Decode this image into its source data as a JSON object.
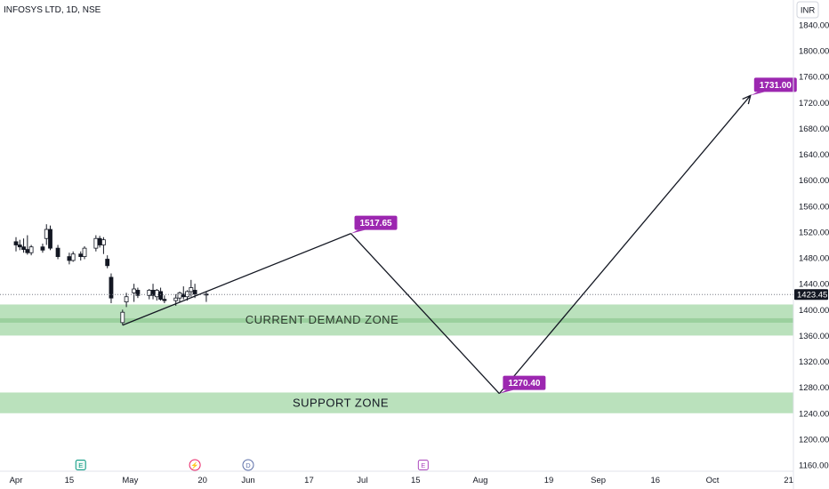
{
  "header": {
    "title": "INFOSYS LTD, 1D, NSE"
  },
  "currency_button": {
    "label": "INR"
  },
  "colors": {
    "accent": "#9c27b0",
    "zone_fill": "#b6dfb8",
    "zone_mid": "#9bd09e",
    "candle": "#131722",
    "last_price_bg": "#131722"
  },
  "chart_data": {
    "type": "candlestick",
    "title": "INFOSYS LTD, 1D, NSE",
    "ylim": [
      1150,
      1860
    ],
    "y_ticks": [
      1160,
      1200,
      1240,
      1280,
      1320,
      1360,
      1400,
      1440,
      1480,
      1520,
      1560,
      1600,
      1640,
      1680,
      1720,
      1760,
      1800,
      1840
    ],
    "y_tick_labels": [
      "1160.00",
      "1200.00",
      "1240.00",
      "1280.00",
      "1320.00",
      "1360.00",
      "1400.00",
      "1440.00",
      "1480.00",
      "1520.00",
      "1560.00",
      "1600.00",
      "1640.00",
      "1680.00",
      "1720.00",
      "1760.00",
      "1800.00",
      "1840.00"
    ],
    "x_tick_labels": [
      "Apr",
      "15",
      "May",
      "20",
      "Jun",
      "17",
      "Jul",
      "15",
      "Aug",
      "19",
      "Sep",
      "16",
      "Oct",
      "21"
    ],
    "last_price": "1423.45",
    "candles": [
      {
        "date": "2024-04-01",
        "open": 1505,
        "high": 1512,
        "low": 1490,
        "close": 1500
      },
      {
        "date": "2024-04-02",
        "open": 1500,
        "high": 1508,
        "low": 1492,
        "close": 1497
      },
      {
        "date": "2024-04-03",
        "open": 1497,
        "high": 1510,
        "low": 1488,
        "close": 1493
      },
      {
        "date": "2024-04-04",
        "open": 1493,
        "high": 1515,
        "low": 1485,
        "close": 1488
      },
      {
        "date": "2024-04-05",
        "open": 1488,
        "high": 1500,
        "low": 1484,
        "close": 1497
      },
      {
        "date": "2024-04-08",
        "open": 1497,
        "high": 1502,
        "low": 1488,
        "close": 1492
      },
      {
        "date": "2024-04-09",
        "open": 1510,
        "high": 1532,
        "low": 1500,
        "close": 1524
      },
      {
        "date": "2024-04-10",
        "open": 1524,
        "high": 1530,
        "low": 1492,
        "close": 1495
      },
      {
        "date": "2024-04-12",
        "open": 1495,
        "high": 1500,
        "low": 1478,
        "close": 1482
      },
      {
        "date": "2024-04-15",
        "open": 1482,
        "high": 1488,
        "low": 1470,
        "close": 1476
      },
      {
        "date": "2024-04-16",
        "open": 1476,
        "high": 1490,
        "low": 1474,
        "close": 1486
      },
      {
        "date": "2024-04-18",
        "open": 1486,
        "high": 1490,
        "low": 1476,
        "close": 1482
      },
      {
        "date": "2024-04-19",
        "open": 1482,
        "high": 1498,
        "low": 1478,
        "close": 1495
      },
      {
        "date": "2024-04-22",
        "open": 1495,
        "high": 1515,
        "low": 1490,
        "close": 1510
      },
      {
        "date": "2024-04-23",
        "open": 1510,
        "high": 1514,
        "low": 1496,
        "close": 1500
      },
      {
        "date": "2024-04-24",
        "open": 1500,
        "high": 1512,
        "low": 1486,
        "close": 1508
      },
      {
        "date": "2024-04-25",
        "open": 1478,
        "high": 1484,
        "low": 1464,
        "close": 1468
      },
      {
        "date": "2024-04-26",
        "open": 1450,
        "high": 1456,
        "low": 1410,
        "close": 1418
      },
      {
        "date": "2024-04-29",
        "open": 1380,
        "high": 1400,
        "low": 1376,
        "close": 1396
      },
      {
        "date": "2024-04-30",
        "open": 1412,
        "high": 1426,
        "low": 1404,
        "close": 1420
      },
      {
        "date": "2024-05-02",
        "open": 1426,
        "high": 1440,
        "low": 1412,
        "close": 1432
      },
      {
        "date": "2024-05-03",
        "open": 1430,
        "high": 1434,
        "low": 1418,
        "close": 1422
      },
      {
        "date": "2024-05-06",
        "open": 1422,
        "high": 1432,
        "low": 1416,
        "close": 1430
      },
      {
        "date": "2024-05-07",
        "open": 1430,
        "high": 1440,
        "low": 1416,
        "close": 1422
      },
      {
        "date": "2024-05-08",
        "open": 1420,
        "high": 1432,
        "low": 1414,
        "close": 1430
      },
      {
        "date": "2024-05-09",
        "open": 1428,
        "high": 1434,
        "low": 1414,
        "close": 1416
      },
      {
        "date": "2024-05-10",
        "open": 1416,
        "high": 1422,
        "low": 1410,
        "close": 1414
      },
      {
        "date": "2024-05-13",
        "open": 1414,
        "high": 1424,
        "low": 1406,
        "close": 1418
      },
      {
        "date": "2024-05-14",
        "open": 1418,
        "high": 1428,
        "low": 1412,
        "close": 1426
      },
      {
        "date": "2024-05-15",
        "open": 1424,
        "high": 1436,
        "low": 1416,
        "close": 1420
      },
      {
        "date": "2024-05-16",
        "open": 1420,
        "high": 1430,
        "low": 1414,
        "close": 1428
      },
      {
        "date": "2024-05-17",
        "open": 1428,
        "high": 1446,
        "low": 1420,
        "close": 1434
      },
      {
        "date": "2024-05-18",
        "open": 1430,
        "high": 1440,
        "low": 1418,
        "close": 1424
      },
      {
        "date": "2024-05-21",
        "open": 1424,
        "high": 1428,
        "low": 1412,
        "close": 1423.45
      }
    ],
    "zones": [
      {
        "label": "CURRENT DEMAND ZONE",
        "from": 1360,
        "to": 1408
      },
      {
        "label": "SUPPORT ZONE",
        "from": 1240,
        "to": 1272
      }
    ],
    "projection": [
      {
        "date": "2024-04-29",
        "price": 1376
      },
      {
        "date": "2024-06-28",
        "price": 1517.65
      },
      {
        "date": "2024-08-06",
        "price": 1270.4
      },
      {
        "date": "2024-10-11",
        "price": 1731.0
      }
    ],
    "callouts": [
      "1517.65",
      "1270.40",
      "1731.00"
    ],
    "event_badges": [
      "E",
      "⚡",
      "D",
      "E"
    ]
  }
}
